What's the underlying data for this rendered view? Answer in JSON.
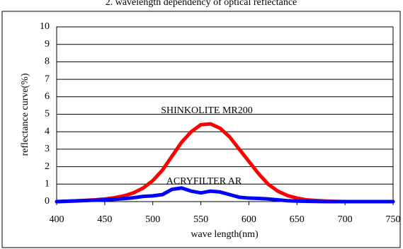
{
  "chart_data": {
    "type": "line",
    "title": "2. wavelength dependency of  optical reflectance",
    "x_label": "wave length(nm)",
    "y_label": "reflectance curve(%)",
    "x": [
      400,
      410,
      420,
      430,
      440,
      450,
      460,
      470,
      480,
      490,
      500,
      510,
      520,
      530,
      540,
      550,
      560,
      570,
      580,
      590,
      600,
      610,
      620,
      630,
      640,
      650,
      660,
      670,
      680,
      690,
      700,
      710,
      720,
      730,
      740,
      750
    ],
    "series": [
      {
        "name": "SHINKOLITE MR200",
        "color": "#ff0000",
        "values": [
          0,
          0.02,
          0.04,
          0.07,
          0.1,
          0.15,
          0.22,
          0.33,
          0.5,
          0.78,
          1.2,
          1.8,
          2.6,
          3.4,
          4.0,
          4.4,
          4.45,
          4.2,
          3.7,
          3.0,
          2.3,
          1.6,
          1.0,
          0.6,
          0.35,
          0.2,
          0.1,
          0.06,
          0.03,
          0.01,
          0,
          0,
          0,
          0,
          0,
          0
        ]
      },
      {
        "name": "ACRYFILTER AR",
        "color": "#0000ff",
        "values": [
          0,
          0.02,
          0.04,
          0.06,
          0.08,
          0.1,
          0.13,
          0.17,
          0.22,
          0.3,
          0.33,
          0.4,
          0.7,
          0.78,
          0.6,
          0.5,
          0.6,
          0.55,
          0.4,
          0.25,
          0.2,
          0.18,
          0.15,
          0.1,
          0.05,
          0.03,
          0.02,
          0.01,
          0,
          0,
          0,
          0,
          0,
          0,
          0,
          0
        ]
      }
    ],
    "xlim": [
      400,
      750
    ],
    "xticks": [
      400,
      450,
      500,
      550,
      600,
      650,
      700,
      750
    ],
    "ylim": [
      0,
      10
    ],
    "yticks": [
      0,
      1,
      2,
      3,
      4,
      5,
      6,
      7,
      8,
      9,
      10
    ],
    "grid": true
  }
}
